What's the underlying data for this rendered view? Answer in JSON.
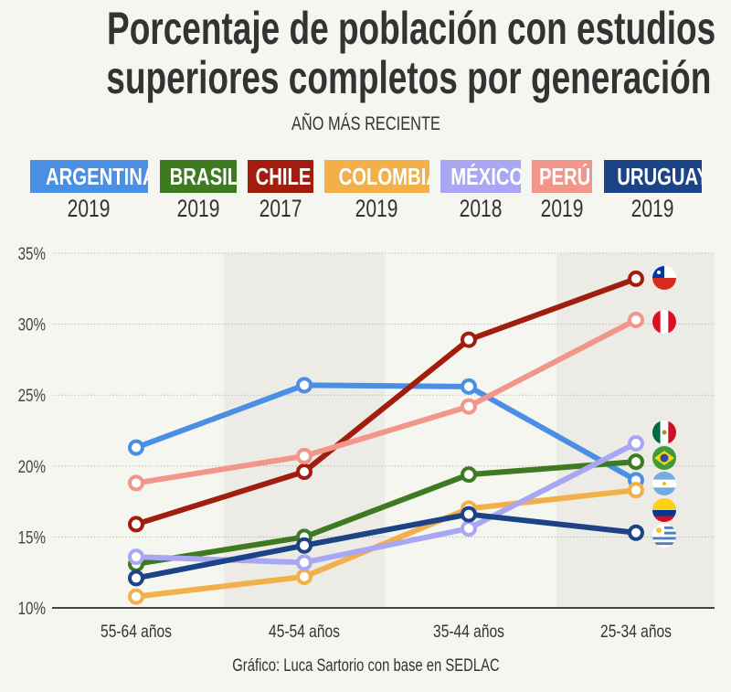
{
  "title_lines": [
    "Porcentaje de población con estudios",
    "superiores completos por generación"
  ],
  "subtitle": "AÑO MÁS RECIENTE",
  "legend": [
    {
      "name": "ARGENTINA",
      "year": "2019",
      "color": "#4a8fe3"
    },
    {
      "name": "BRASIL",
      "year": "2019",
      "color": "#3d7a22"
    },
    {
      "name": "CHILE",
      "year": "2017",
      "color": "#a11d0e"
    },
    {
      "name": "COLOMBIA",
      "year": "2019",
      "color": "#f1b04a"
    },
    {
      "name": "MÉXICO",
      "year": "2018",
      "color": "#a9a7f3"
    },
    {
      "name": "PERÚ",
      "year": "2019",
      "color": "#f1968b"
    },
    {
      "name": "URUGUAY",
      "year": "2019",
      "color": "#1d4387"
    }
  ],
  "footer": "Gráfico: Luca Sartorio con base en SEDLAC",
  "chart_data": {
    "type": "line",
    "title": "Porcentaje de población con estudios superiores completos por generación",
    "categories": [
      "55-64 años",
      "45-54 años",
      "35-44 años",
      "25-34 años"
    ],
    "yticks": [
      "10%",
      "15%",
      "20%",
      "25%",
      "30%",
      "35%"
    ],
    "ylim": [
      10,
      35
    ],
    "grid": true,
    "series": [
      {
        "name": "Argentina",
        "color": "#4a8fe3",
        "flag": "argentina-flag",
        "values": [
          21.3,
          25.7,
          25.6,
          19.0
        ]
      },
      {
        "name": "Brasil",
        "color": "#3d7a22",
        "flag": "brazil-flag",
        "values": [
          13.1,
          15.0,
          19.4,
          20.3
        ]
      },
      {
        "name": "Chile",
        "color": "#a11d0e",
        "flag": "chile-flag",
        "values": [
          15.9,
          19.6,
          28.9,
          33.2
        ]
      },
      {
        "name": "Colombia",
        "color": "#f1b04a",
        "flag": "colombia-flag",
        "values": [
          10.8,
          12.2,
          17.0,
          18.3
        ]
      },
      {
        "name": "México",
        "color": "#a9a7f3",
        "flag": "mexico-flag",
        "values": [
          13.6,
          13.2,
          15.6,
          21.6
        ]
      },
      {
        "name": "Perú",
        "color": "#f1968b",
        "flag": "peru-flag",
        "values": [
          18.8,
          20.7,
          24.2,
          30.3
        ]
      },
      {
        "name": "Uruguay",
        "color": "#1d4387",
        "flag": "uruguay-flag",
        "values": [
          12.1,
          14.4,
          16.6,
          15.3
        ]
      }
    ]
  }
}
